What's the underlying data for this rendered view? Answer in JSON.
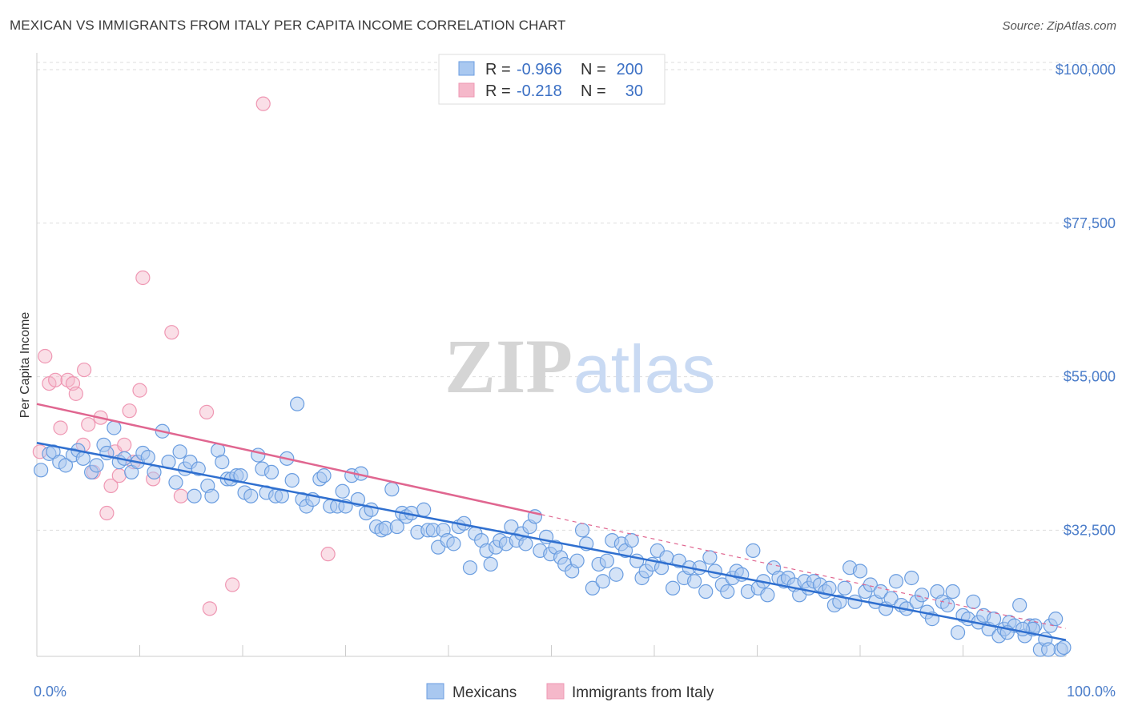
{
  "header": {
    "title": "MEXICAN VS IMMIGRANTS FROM ITALY PER CAPITA INCOME CORRELATION CHART",
    "source": "Source: ZipAtlas.com"
  },
  "watermark": {
    "zip": "ZIP",
    "atlas": "atlas"
  },
  "legend_top": {
    "rows": [
      {
        "r_label": "R = ",
        "r_value": "-0.966",
        "n_label": "N = ",
        "n_value": "200",
        "color": "#a9c8f0"
      },
      {
        "r_label": "R = ",
        "r_value": "-0.218",
        "n_label": "N = ",
        "n_value": "30",
        "color": "#f5b8ca"
      }
    ]
  },
  "legend_bottom": {
    "items": [
      "Mexicans",
      "Immigrants from Italy"
    ]
  },
  "chart_data": {
    "type": "scatter",
    "title": "MEXICAN VS IMMIGRANTS FROM ITALY PER CAPITA INCOME CORRELATION CHART",
    "xlabel": "",
    "ylabel": "Per Capita Income",
    "xlim": [
      0,
      100
    ],
    "ylim": [
      14000,
      102000
    ],
    "x_tick_labels": [
      "0.0%",
      "100.0%"
    ],
    "y_ticks": [
      32500,
      55000,
      77500,
      100000
    ],
    "y_tick_labels": [
      "$32,500",
      "$55,000",
      "$77,500",
      "$100,000"
    ],
    "grid": true,
    "legend_position": "top-center",
    "colors": {
      "mexicans": "#6a9de0",
      "italy": "#ef97b3",
      "mex_line": "#2f6fcf",
      "ita_line": "#e06690"
    },
    "series": [
      {
        "name": "Mexicans",
        "r": -0.966,
        "n": 200,
        "trend": {
          "x": [
            0,
            100
          ],
          "y": [
            45300,
            16400
          ]
        },
        "points": [
          [
            0.4,
            41300
          ],
          [
            1.2,
            43700
          ],
          [
            1.6,
            44000
          ],
          [
            2.2,
            42500
          ],
          [
            2.8,
            42000
          ],
          [
            3.5,
            43500
          ],
          [
            4.0,
            44200
          ],
          [
            4.5,
            43000
          ],
          [
            5.3,
            41000
          ],
          [
            5.8,
            42000
          ],
          [
            6.5,
            45000
          ],
          [
            6.8,
            43800
          ],
          [
            7.5,
            47500
          ],
          [
            8.0,
            42500
          ],
          [
            8.5,
            43000
          ],
          [
            9.2,
            41000
          ],
          [
            9.8,
            42500
          ],
          [
            10.3,
            43800
          ],
          [
            10.8,
            43200
          ],
          [
            11.4,
            41000
          ],
          [
            12.2,
            47000
          ],
          [
            12.8,
            42500
          ],
          [
            13.5,
            39500
          ],
          [
            13.9,
            44000
          ],
          [
            14.4,
            41500
          ],
          [
            14.9,
            42500
          ],
          [
            15.3,
            37500
          ],
          [
            15.7,
            41500
          ],
          [
            16.6,
            39000
          ],
          [
            17.0,
            37500
          ],
          [
            17.6,
            44200
          ],
          [
            18.0,
            42500
          ],
          [
            18.5,
            40000
          ],
          [
            18.9,
            40000
          ],
          [
            19.4,
            40500
          ],
          [
            19.8,
            40500
          ],
          [
            20.2,
            38000
          ],
          [
            20.8,
            37500
          ],
          [
            21.5,
            43500
          ],
          [
            21.9,
            41500
          ],
          [
            22.3,
            38000
          ],
          [
            22.8,
            41000
          ],
          [
            23.2,
            37500
          ],
          [
            23.8,
            37500
          ],
          [
            24.3,
            43000
          ],
          [
            24.8,
            39800
          ],
          [
            25.3,
            51000
          ],
          [
            25.8,
            37000
          ],
          [
            26.2,
            36000
          ],
          [
            26.8,
            37000
          ],
          [
            27.5,
            40000
          ],
          [
            27.9,
            40500
          ],
          [
            28.5,
            36000
          ],
          [
            29.2,
            36000
          ],
          [
            29.7,
            38200
          ],
          [
            30.0,
            36000
          ],
          [
            30.6,
            40500
          ],
          [
            31.2,
            37000
          ],
          [
            31.5,
            40800
          ],
          [
            32.0,
            35000
          ],
          [
            32.5,
            35500
          ],
          [
            33.0,
            33000
          ],
          [
            33.5,
            32500
          ],
          [
            33.9,
            32800
          ],
          [
            34.5,
            38500
          ],
          [
            35.0,
            33000
          ],
          [
            35.5,
            35000
          ],
          [
            35.9,
            34500
          ],
          [
            36.4,
            35000
          ],
          [
            37.0,
            32200
          ],
          [
            37.6,
            35500
          ],
          [
            38.0,
            32500
          ],
          [
            38.5,
            32500
          ],
          [
            39.0,
            30000
          ],
          [
            39.5,
            32500
          ],
          [
            39.9,
            31000
          ],
          [
            40.5,
            30500
          ],
          [
            41.0,
            33000
          ],
          [
            41.5,
            33500
          ],
          [
            42.1,
            27000
          ],
          [
            42.6,
            32000
          ],
          [
            43.2,
            31000
          ],
          [
            43.7,
            29500
          ],
          [
            44.1,
            27500
          ],
          [
            44.6,
            30000
          ],
          [
            45.0,
            31000
          ],
          [
            45.6,
            30500
          ],
          [
            46.1,
            33000
          ],
          [
            46.6,
            31000
          ],
          [
            47.1,
            32000
          ],
          [
            47.5,
            30500
          ],
          [
            47.9,
            33000
          ],
          [
            48.4,
            34500
          ],
          [
            48.9,
            29500
          ],
          [
            49.5,
            31500
          ],
          [
            49.9,
            29000
          ],
          [
            50.4,
            30000
          ],
          [
            50.9,
            28500
          ],
          [
            51.3,
            27500
          ],
          [
            52.0,
            26500
          ],
          [
            52.5,
            28000
          ],
          [
            53.0,
            32500
          ],
          [
            53.4,
            30500
          ],
          [
            54.0,
            24000
          ],
          [
            54.6,
            27500
          ],
          [
            55.0,
            25000
          ],
          [
            55.4,
            28000
          ],
          [
            55.9,
            31000
          ],
          [
            56.3,
            26000
          ],
          [
            56.8,
            30500
          ],
          [
            57.2,
            29500
          ],
          [
            57.8,
            31000
          ],
          [
            58.3,
            28000
          ],
          [
            58.8,
            25500
          ],
          [
            59.2,
            26500
          ],
          [
            59.8,
            27500
          ],
          [
            60.3,
            29500
          ],
          [
            60.7,
            27000
          ],
          [
            61.2,
            28500
          ],
          [
            61.8,
            24000
          ],
          [
            62.4,
            28000
          ],
          [
            62.9,
            25500
          ],
          [
            63.4,
            27000
          ],
          [
            63.9,
            25000
          ],
          [
            64.4,
            27000
          ],
          [
            65.0,
            23500
          ],
          [
            65.4,
            28500
          ],
          [
            65.9,
            26500
          ],
          [
            66.6,
            24500
          ],
          [
            67.1,
            23500
          ],
          [
            67.6,
            25500
          ],
          [
            68.0,
            26500
          ],
          [
            68.5,
            26000
          ],
          [
            69.1,
            23500
          ],
          [
            69.6,
            29500
          ],
          [
            70.1,
            24000
          ],
          [
            70.6,
            25000
          ],
          [
            71.0,
            23000
          ],
          [
            71.6,
            27000
          ],
          [
            72.1,
            25500
          ],
          [
            72.6,
            25000
          ],
          [
            73.0,
            25500
          ],
          [
            73.6,
            24500
          ],
          [
            74.1,
            23000
          ],
          [
            74.6,
            25000
          ],
          [
            75.0,
            24000
          ],
          [
            75.5,
            25000
          ],
          [
            76.1,
            24500
          ],
          [
            76.6,
            23500
          ],
          [
            77.0,
            24000
          ],
          [
            77.5,
            21500
          ],
          [
            78.0,
            22000
          ],
          [
            78.5,
            24000
          ],
          [
            79.0,
            27000
          ],
          [
            79.5,
            22000
          ],
          [
            80.0,
            26500
          ],
          [
            80.5,
            23500
          ],
          [
            81.0,
            24500
          ],
          [
            81.5,
            22000
          ],
          [
            82.0,
            23500
          ],
          [
            82.5,
            21000
          ],
          [
            83.0,
            22500
          ],
          [
            83.5,
            25000
          ],
          [
            84.0,
            21500
          ],
          [
            84.5,
            21000
          ],
          [
            85.0,
            25500
          ],
          [
            85.5,
            22000
          ],
          [
            86.0,
            23000
          ],
          [
            86.5,
            20500
          ],
          [
            87.0,
            19500
          ],
          [
            87.5,
            23500
          ],
          [
            88.0,
            22000
          ],
          [
            88.5,
            21500
          ],
          [
            89.0,
            23500
          ],
          [
            89.5,
            17500
          ],
          [
            90.0,
            20000
          ],
          [
            90.5,
            19500
          ],
          [
            91.0,
            22000
          ],
          [
            91.5,
            19000
          ],
          [
            92.0,
            20000
          ],
          [
            92.5,
            18000
          ],
          [
            93.0,
            19500
          ],
          [
            93.5,
            17000
          ],
          [
            94.0,
            18000
          ],
          [
            94.5,
            19000
          ],
          [
            95.0,
            18500
          ],
          [
            95.5,
            21500
          ],
          [
            96.0,
            17000
          ],
          [
            96.5,
            18500
          ],
          [
            97.0,
            18500
          ],
          [
            97.5,
            15000
          ],
          [
            98.0,
            16500
          ],
          [
            98.5,
            18500
          ],
          [
            99.0,
            19500
          ],
          [
            99.5,
            15000
          ],
          [
            99.8,
            15300
          ],
          [
            98.3,
            15000
          ],
          [
            96.8,
            18000
          ],
          [
            95.8,
            18000
          ],
          [
            94.3,
            17500
          ]
        ]
      },
      {
        "name": "Immigrants from Italy",
        "r": -0.218,
        "n": 30,
        "trend": {
          "x": [
            0,
            49
          ],
          "y": [
            51000,
            34800
          ]
        },
        "trend_dashed": {
          "x": [
            49,
            100
          ],
          "y": [
            34800,
            18100
          ]
        },
        "points": [
          [
            0.3,
            44000
          ],
          [
            0.8,
            58000
          ],
          [
            1.2,
            54000
          ],
          [
            1.8,
            54500
          ],
          [
            2.3,
            47500
          ],
          [
            3.0,
            54500
          ],
          [
            3.5,
            54000
          ],
          [
            3.8,
            52500
          ],
          [
            4.5,
            45000
          ],
          [
            4.6,
            56000
          ],
          [
            5.0,
            48000
          ],
          [
            5.5,
            41000
          ],
          [
            6.2,
            49000
          ],
          [
            6.8,
            35000
          ],
          [
            7.2,
            39000
          ],
          [
            7.6,
            44000
          ],
          [
            8.0,
            40500
          ],
          [
            8.5,
            45000
          ],
          [
            9.0,
            50000
          ],
          [
            9.4,
            42500
          ],
          [
            10.0,
            53000
          ],
          [
            10.3,
            69500
          ],
          [
            11.3,
            40000
          ],
          [
            13.1,
            61500
          ],
          [
            14.0,
            37500
          ],
          [
            16.5,
            49800
          ],
          [
            16.8,
            21000
          ],
          [
            19.0,
            24500
          ],
          [
            22.0,
            95000
          ],
          [
            28.3,
            29000
          ]
        ]
      }
    ]
  }
}
